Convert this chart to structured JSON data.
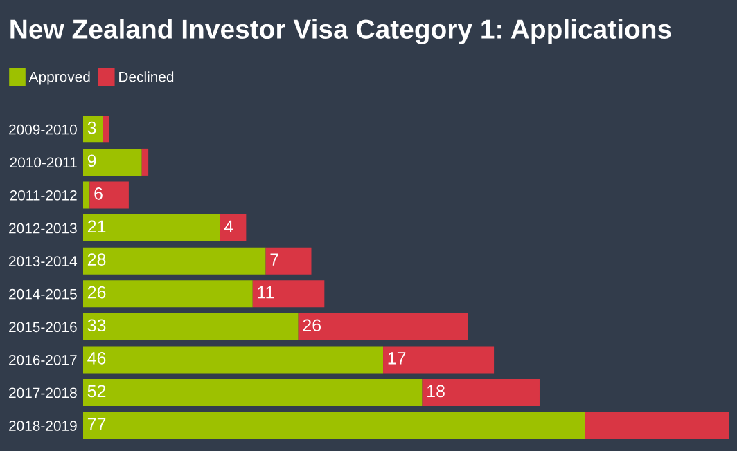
{
  "chart_data": {
    "type": "bar",
    "orientation": "horizontal",
    "stacked": true,
    "title": "New Zealand Investor Visa Category 1: Applications",
    "categories": [
      "2009-2010",
      "2010-2011",
      "2011-2012",
      "2012-2013",
      "2013-2014",
      "2014-2015",
      "2015-2016",
      "2016-2017",
      "2017-2018",
      "2018-2019"
    ],
    "series": [
      {
        "name": "Approved",
        "color": "#9dc100",
        "values": [
          3,
          9,
          1,
          21,
          28,
          26,
          33,
          46,
          52,
          77
        ],
        "value_labels": [
          "3",
          "9",
          null,
          "21",
          "28",
          "26",
          "33",
          "46",
          "52",
          "77"
        ]
      },
      {
        "name": "Declined",
        "color": "#d93644",
        "values": [
          1,
          1,
          6,
          4,
          7,
          11,
          26,
          17,
          18,
          22
        ],
        "value_labels": [
          null,
          null,
          "6",
          "4",
          "7",
          "11",
          "26",
          "17",
          "18",
          null
        ]
      }
    ],
    "legend": "top left",
    "grid": false,
    "tick_labels": "y"
  }
}
